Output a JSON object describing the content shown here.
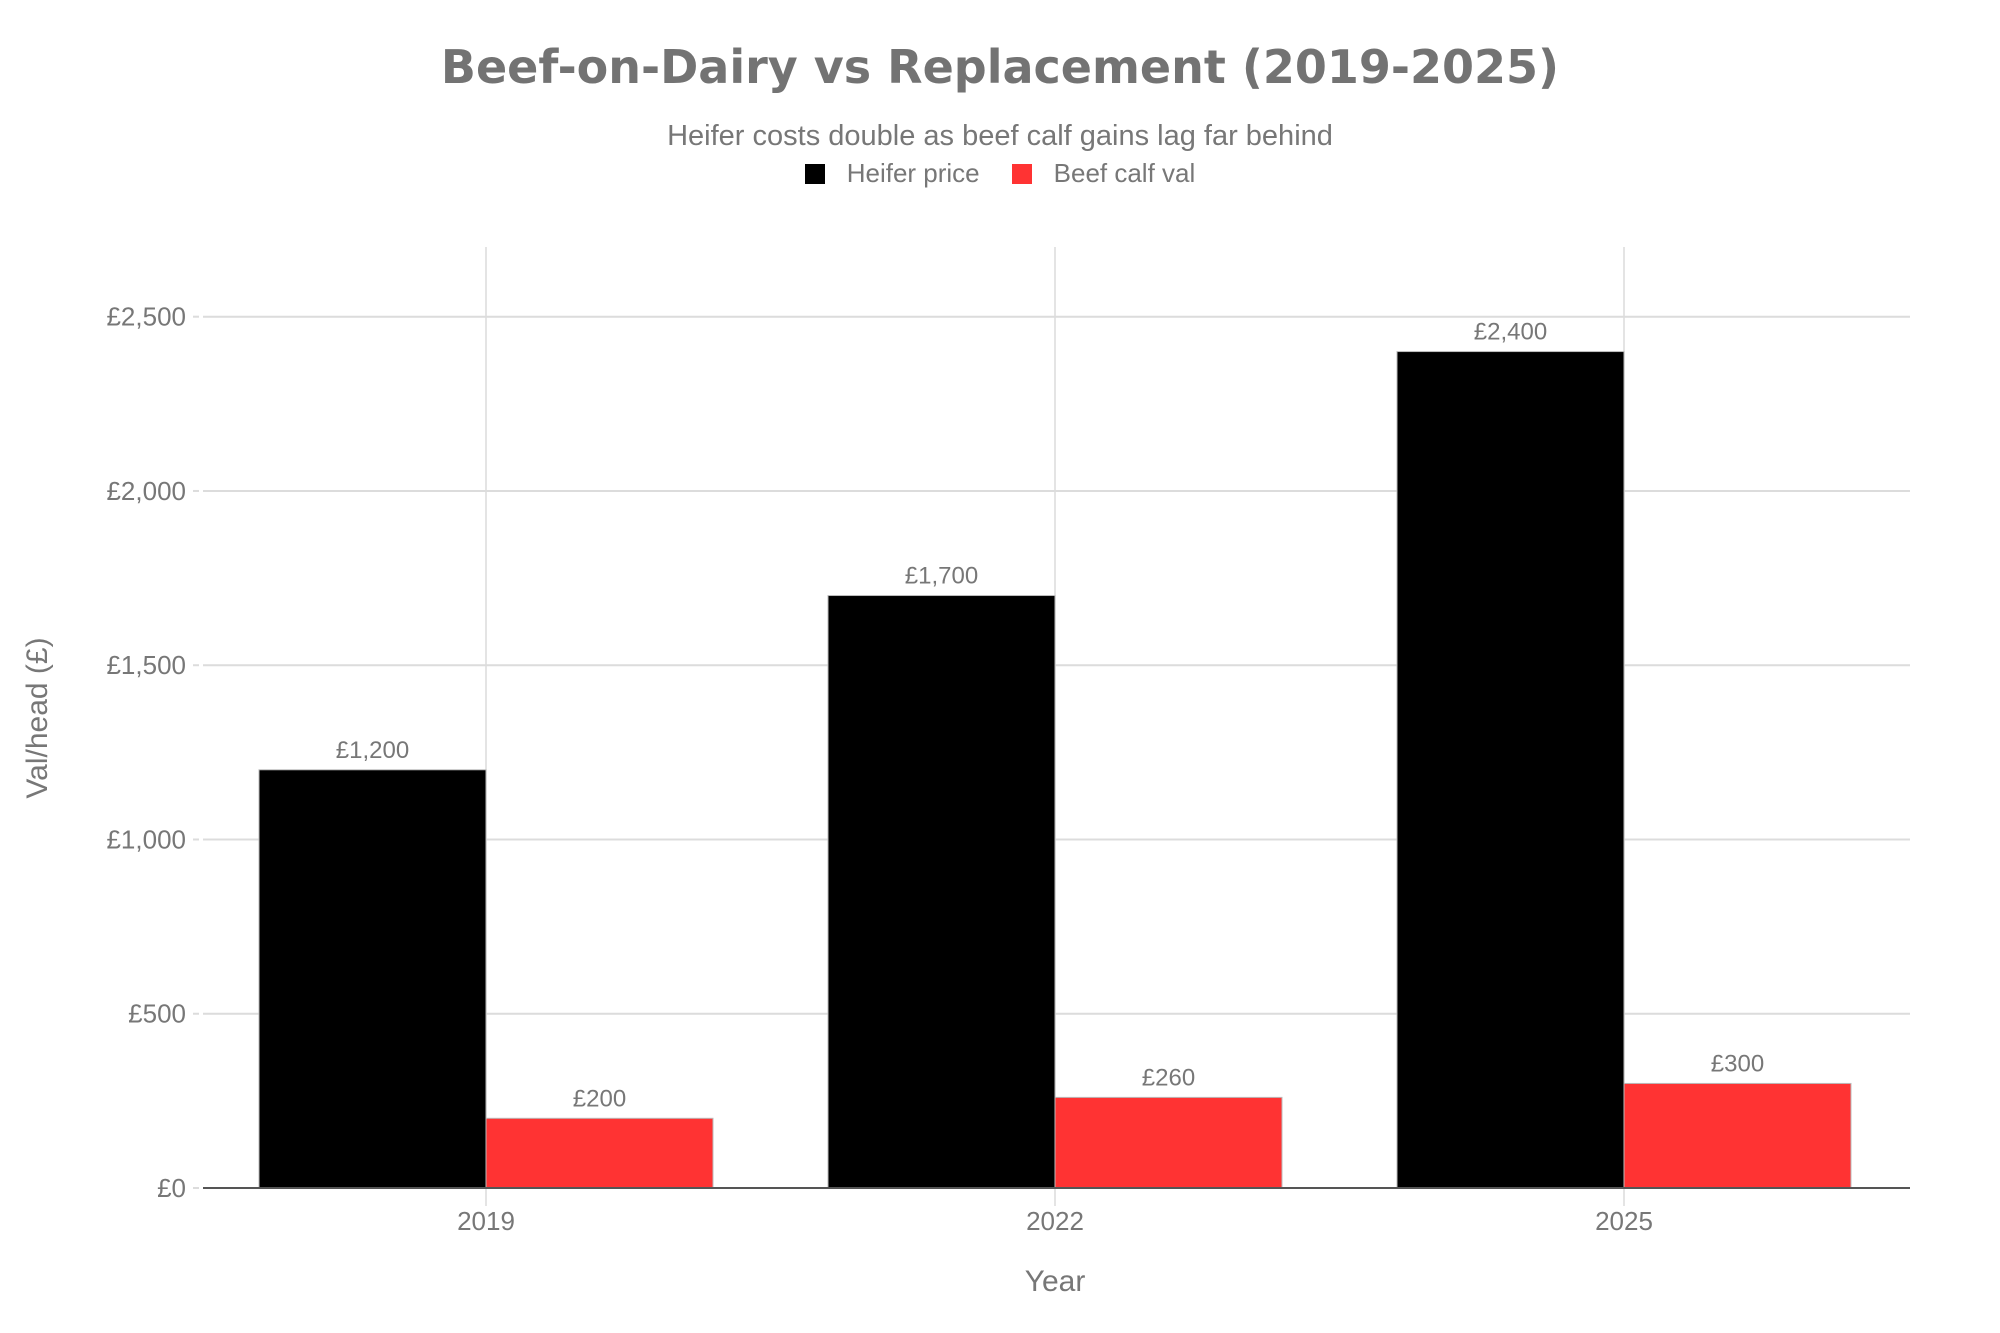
{
  "chart_data": {
    "type": "bar",
    "title": "Beef-on-Dairy vs Replacement (2019-2025)",
    "subtitle": "Heifer costs double as beef calf gains lag far behind",
    "xlabel": "Year",
    "ylabel": "Val/head (£)",
    "categories": [
      "2019",
      "2022",
      "2025"
    ],
    "series": [
      {
        "name": "Heifer price",
        "color": "#000000",
        "values": [
          1200,
          1700,
          2400
        ],
        "labels": [
          "£1,200",
          "£1,700",
          "£2,400"
        ]
      },
      {
        "name": "Beef calf val",
        "color": "#FF3333",
        "values": [
          200,
          260,
          300
        ],
        "labels": [
          "£200",
          "£260",
          "£300"
        ]
      }
    ],
    "yticks": [
      0,
      500,
      1000,
      1500,
      2000,
      2500
    ],
    "ytick_labels": [
      "£0",
      "£500",
      "£1,000",
      "£1,500",
      "£2,000",
      "£2,500"
    ],
    "ylim": [
      0,
      2700
    ],
    "grid": true,
    "legend_position": "top-center"
  }
}
